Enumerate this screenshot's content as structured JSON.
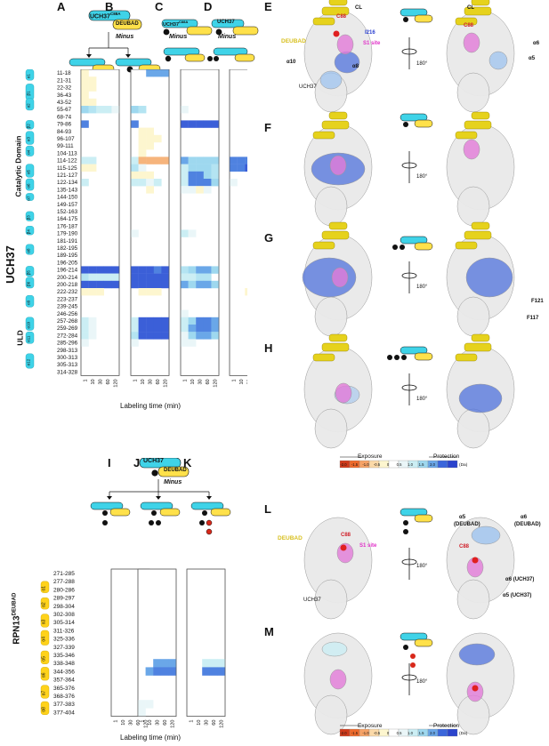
{
  "panel_letters": [
    "A",
    "B",
    "C",
    "D",
    "E",
    "F",
    "G",
    "H",
    "I",
    "J",
    "K",
    "L",
    "M"
  ],
  "top_construct": {
    "ucp": "UCH37",
    "superscript": "C88A",
    "deubad": "DEUBAD",
    "minus": "Minus"
  },
  "col_c_label": {
    "ucp": "UCH37",
    "superscript": "C88A",
    "minus": "Minus"
  },
  "col_d_label": {
    "ucp": "UCH37",
    "minus": "Minus"
  },
  "protein_label": "UCH37",
  "domain_labels": {
    "catalytic": "Catalytic Domain",
    "uld": "ULD"
  },
  "ss_uch": [
    "α1",
    "β1",
    "α2",
    "β2",
    "α3",
    "α4",
    "α5",
    "α6",
    "α7",
    "β3",
    "β4",
    "α8",
    "β5",
    "β6",
    "α9",
    "α10",
    "α11",
    "α12"
  ],
  "uch_peptides": [
    "11-18",
    "21-31",
    "22-32",
    "36-43",
    "43-52",
    "55-67",
    "68-74",
    "79-86",
    "84-93",
    "96-107",
    "99-111",
    "104-113",
    "114-122",
    "115-125",
    "121-127",
    "122-134",
    "135-143",
    "144-150",
    "149-157",
    "152-163",
    "164-175",
    "176-187",
    "179-190",
    "181-191",
    "182-195",
    "189-195",
    "196-205",
    "196-214",
    "200-214",
    "200-218",
    "222-232",
    "223-237",
    "239-245",
    "246-256",
    "257-268",
    "259-269",
    "272-284",
    "285-296",
    "298-313",
    "300-313",
    "305-313",
    "314-328"
  ],
  "time_points": [
    "1",
    "10",
    "30",
    "60",
    "120"
  ],
  "xaxis_label": "Labeling time (min)",
  "rpn_label": "RPN13",
  "rpn_superscript": "DEUBAD",
  "ss_rpn": [
    "α1",
    "α2",
    "α3",
    "α4",
    "α5",
    "α6",
    "α7",
    "α8"
  ],
  "rpn_peptides": [
    "271-285",
    "277-288",
    "280-286",
    "289-297",
    "298-304",
    "302-308",
    "305-314",
    "311-326",
    "325-336",
    "327-339",
    "335-346",
    "338-348",
    "344-356",
    "357-364",
    "365-376",
    "368-376",
    "377-383",
    "377-404"
  ],
  "bottom_construct": {
    "ucp": "UCH37",
    "deubad": "DEUBAD",
    "minus": "Minus"
  },
  "structure_labels": {
    "E_left": [
      "CL",
      "C88",
      "I216",
      "S1 site",
      "DEUBAD",
      "α10",
      "α8",
      "UCH37"
    ],
    "E_right": [
      "CL",
      "C88",
      "α6",
      "α5"
    ],
    "G_right": [
      "F121",
      "F117"
    ],
    "L_left": [
      "DEUBAD",
      "C88",
      "S1 site",
      "UCH37"
    ],
    "L_right": [
      "α5",
      "(DEUBAD)",
      "α6",
      "(DEUBAD)",
      "C88",
      "α6 (UCH37)",
      "α5 (UCH37)"
    ]
  },
  "rotation": "180°",
  "scale_bar": {
    "exposure": "Exposure",
    "protection": "Protection",
    "ticks": [
      "-2.0",
      "-1.5",
      "-1.0",
      "-0.5",
      "0",
      "0.5",
      "1.0",
      "1.5",
      "2.0"
    ],
    "unit": "(Da)",
    "colors": [
      "#d03a1a",
      "#ee6a2c",
      "#f6a266",
      "#fbd9a8",
      "#fdf6cf",
      "#ffffff",
      "#eaf6f8",
      "#cbeef4",
      "#9ed8ef",
      "#6aa7e8",
      "#3b66db",
      "#2b44cc"
    ]
  },
  "heatmaps": {
    "A": [
      [
        -0.2,
        0,
        0,
        0,
        0
      ],
      [
        -0.3,
        -0.2,
        0,
        0,
        0
      ],
      [
        -0.2,
        -0.4,
        0,
        0,
        0
      ],
      [
        -0.2,
        0,
        0,
        0,
        0
      ],
      [
        -0.4,
        -0.3,
        0,
        0,
        0
      ],
      [
        0.9,
        0.6,
        0.4,
        0.4,
        0.2
      ],
      [
        0,
        0,
        0,
        0,
        0
      ],
      [
        1.5,
        0,
        0,
        0,
        0
      ],
      [
        0,
        0,
        0,
        0,
        0
      ],
      [
        0,
        0,
        0,
        0,
        0
      ],
      [
        0,
        0,
        0,
        0,
        0
      ],
      [
        0,
        0,
        0,
        0,
        0
      ],
      [
        0.4,
        0.4,
        0,
        0,
        0
      ],
      [
        -0.3,
        -0.3,
        0,
        0,
        0
      ],
      [
        0,
        0,
        0,
        0,
        0
      ],
      [
        0.4,
        0,
        0,
        0,
        0
      ],
      [
        0,
        0,
        0,
        0,
        0
      ],
      [
        0,
        0,
        0,
        0,
        0
      ],
      [
        0,
        0,
        0,
        0,
        0
      ],
      [
        0,
        0,
        0,
        0,
        0
      ],
      [
        0,
        0,
        0,
        0,
        0
      ],
      [
        0,
        0,
        0,
        0,
        0
      ],
      [
        0,
        0,
        0,
        0,
        0
      ],
      [
        0,
        0,
        0,
        0,
        0
      ],
      [
        0,
        0,
        0,
        0,
        0
      ],
      [
        0,
        0,
        0,
        0,
        0
      ],
      [
        0,
        0,
        0,
        0,
        0
      ],
      [
        1.9,
        1.9,
        1.9,
        1.9,
        1.9
      ],
      [
        0.6,
        0.4,
        0.4,
        0.4,
        0.4
      ],
      [
        1.9,
        1.9,
        1.9,
        1.9,
        1.9
      ],
      [
        -0.3,
        -0.3,
        -0.3,
        0,
        0
      ],
      [
        0,
        0,
        0,
        0,
        0
      ],
      [
        0,
        0,
        0,
        0,
        0
      ],
      [
        0,
        0,
        0,
        0,
        0
      ],
      [
        0.4,
        0.2,
        0,
        0,
        0
      ],
      [
        0.4,
        0.3,
        0,
        0,
        0
      ],
      [
        0.4,
        0.2,
        0,
        0,
        0
      ],
      [
        0.3,
        0,
        0,
        0,
        0
      ],
      [
        0,
        0,
        0,
        0,
        0
      ],
      [
        0,
        0,
        0,
        0,
        0
      ],
      [
        0,
        0,
        0,
        0,
        0
      ],
      [
        0,
        0,
        0,
        0,
        0
      ]
    ],
    "B": [
      [
        0,
        0,
        1.2,
        1.2,
        1.2
      ],
      [
        0,
        0,
        0,
        0,
        0
      ],
      [
        0,
        0,
        0,
        0,
        0
      ],
      [
        0,
        0,
        0,
        0,
        0
      ],
      [
        0,
        0,
        0,
        0,
        0
      ],
      [
        1.0,
        0.6,
        0,
        0,
        0
      ],
      [
        0,
        0,
        0,
        0,
        0
      ],
      [
        1.5,
        0,
        0,
        0,
        0
      ],
      [
        0,
        -0.3,
        -0.3,
        0,
        0
      ],
      [
        0,
        -0.3,
        -0.4,
        -0.3,
        0
      ],
      [
        0,
        -0.3,
        -0.3,
        0,
        0
      ],
      [
        0,
        -0.2,
        0,
        0,
        0
      ],
      [
        0.5,
        -1.2,
        -1.2,
        -1.2,
        -1.0
      ],
      [
        0.7,
        0.3,
        0,
        0,
        0
      ],
      [
        -0.3,
        -0.3,
        -0.3,
        0,
        0
      ],
      [
        0.4,
        0.4,
        0.3,
        0.4,
        0
      ],
      [
        0,
        0,
        -0.2,
        0,
        0
      ],
      [
        0,
        0,
        0,
        0,
        0
      ],
      [
        0,
        0,
        0,
        0,
        0
      ],
      [
        0,
        0,
        0,
        0,
        0
      ],
      [
        0,
        0,
        0,
        0,
        0
      ],
      [
        0,
        0,
        0,
        0,
        0
      ],
      [
        0.3,
        0,
        0,
        0,
        0
      ],
      [
        0,
        0,
        0,
        0,
        0
      ],
      [
        0,
        0,
        0,
        0,
        0
      ],
      [
        0,
        0,
        0,
        0,
        0
      ],
      [
        0,
        0,
        0,
        0,
        0
      ],
      [
        1.8,
        1.8,
        1.7,
        1.5,
        1.8
      ],
      [
        1.9,
        1.9,
        1.9,
        1.9,
        1.9
      ],
      [
        1.9,
        1.9,
        1.9,
        1.9,
        1.9
      ],
      [
        0,
        -0.3,
        -0.3,
        -0.3,
        0
      ],
      [
        0,
        0,
        0,
        0,
        0
      ],
      [
        0,
        0,
        0,
        0,
        0
      ],
      [
        0,
        0,
        0,
        0,
        0
      ],
      [
        0.5,
        1.8,
        1.8,
        1.8,
        1.8
      ],
      [
        0.5,
        1.8,
        1.8,
        1.8,
        1.8
      ],
      [
        0.6,
        1.9,
        1.9,
        1.9,
        1.9
      ],
      [
        0.3,
        0,
        0,
        0,
        0
      ],
      [
        0,
        0,
        0,
        0,
        0
      ],
      [
        0,
        0,
        0,
        0,
        0
      ],
      [
        0,
        0,
        0,
        0,
        0
      ],
      [
        0,
        0,
        0,
        0,
        0
      ]
    ],
    "C": [
      [
        0,
        0,
        0,
        0,
        0
      ],
      [
        0,
        0,
        0,
        0,
        0
      ],
      [
        0,
        0,
        0,
        0,
        0
      ],
      [
        0,
        0,
        0,
        0,
        0
      ],
      [
        0,
        0,
        0,
        0,
        0
      ],
      [
        0.2,
        0,
        0,
        0,
        0
      ],
      [
        0,
        0,
        0,
        0,
        0
      ],
      [
        1.9,
        1.9,
        1.9,
        1.9,
        1.9
      ],
      [
        0,
        0,
        0,
        0,
        0
      ],
      [
        0,
        0,
        0,
        0,
        0
      ],
      [
        0,
        0,
        0,
        0,
        0
      ],
      [
        0,
        0,
        0,
        0,
        0
      ],
      [
        1.2,
        1.0,
        1.0,
        1.0,
        1.0
      ],
      [
        0.4,
        0.9,
        0.9,
        0.9,
        0.6
      ],
      [
        0.4,
        1.6,
        1.6,
        0.9,
        0.6
      ],
      [
        0.4,
        1.4,
        1.6,
        1.6,
        1.0
      ],
      [
        0.3,
        0.3,
        -0.2,
        0.3,
        0
      ],
      [
        0,
        0,
        0,
        0,
        0
      ],
      [
        0,
        0,
        0,
        0,
        0
      ],
      [
        0,
        0,
        0,
        0,
        0
      ],
      [
        0,
        0,
        0,
        0,
        0
      ],
      [
        0,
        0,
        0,
        0,
        0
      ],
      [
        0.4,
        0.3,
        0,
        0,
        0
      ],
      [
        0,
        0,
        0,
        0,
        0
      ],
      [
        0,
        0,
        0,
        0,
        0
      ],
      [
        0,
        0,
        0,
        0,
        0
      ],
      [
        0,
        0,
        0,
        0,
        0
      ],
      [
        0.6,
        0.9,
        1.2,
        1.2,
        0.9
      ],
      [
        0.4,
        0.4,
        0.6,
        0.6,
        0
      ],
      [
        1.2,
        1.0,
        1.2,
        1.2,
        1.0
      ],
      [
        0,
        0,
        0,
        0,
        0
      ],
      [
        0,
        0,
        0,
        0,
        0
      ],
      [
        0,
        0,
        0,
        0,
        0
      ],
      [
        0.3,
        0,
        0,
        0,
        0
      ],
      [
        0.4,
        0.9,
        1.6,
        1.6,
        1.2
      ],
      [
        0.4,
        1.2,
        1.6,
        1.6,
        1.2
      ],
      [
        0.3,
        0.9,
        1.2,
        1.2,
        0.9
      ],
      [
        0.3,
        0.3,
        0,
        0,
        0
      ],
      [
        0,
        0,
        0,
        0,
        0
      ],
      [
        0,
        0,
        0,
        0,
        0
      ],
      [
        0,
        0,
        0,
        0,
        0
      ],
      [
        0,
        0,
        0,
        0,
        0
      ]
    ],
    "D": [
      [
        0,
        0,
        0,
        0,
        0
      ],
      [
        0,
        0,
        0,
        0,
        0
      ],
      [
        0,
        0,
        0,
        0,
        0
      ],
      [
        0,
        0,
        0,
        0,
        0
      ],
      [
        0,
        0,
        0,
        0,
        0
      ],
      [
        0,
        0,
        0,
        0,
        0
      ],
      [
        0,
        0,
        0,
        0,
        0
      ],
      [
        0,
        0,
        0,
        0,
        0
      ],
      [
        0,
        0,
        0,
        0,
        0
      ],
      [
        0,
        0,
        0,
        0,
        0
      ],
      [
        0,
        0,
        0,
        0,
        0
      ],
      [
        0,
        0,
        0,
        0,
        0
      ],
      [
        1.6,
        1.6,
        1.6,
        1.6,
        1.6
      ],
      [
        1.6,
        1.6,
        1.9,
        1.9,
        1.9
      ],
      [
        0,
        0,
        0,
        0,
        0
      ],
      [
        0.3,
        0,
        0,
        0,
        0
      ],
      [
        0,
        0,
        0,
        0,
        0
      ],
      [
        0,
        0,
        0,
        0,
        0
      ],
      [
        0,
        0,
        0,
        0,
        0
      ],
      [
        0,
        0,
        0,
        0,
        0
      ],
      [
        0,
        0,
        0,
        0,
        0
      ],
      [
        0,
        0,
        0,
        0,
        0
      ],
      [
        0,
        0,
        0,
        0,
        0
      ],
      [
        0,
        0,
        0,
        0,
        0
      ],
      [
        0,
        0,
        0,
        0,
        0
      ],
      [
        0,
        0,
        0,
        0,
        0
      ],
      [
        0,
        0,
        0,
        0,
        0
      ],
      [
        0,
        0,
        0,
        0,
        0
      ],
      [
        0,
        0,
        0,
        0,
        0
      ],
      [
        0,
        0,
        0,
        0,
        0
      ],
      [
        0,
        0,
        -0.3,
        -0.3,
        0
      ],
      [
        0,
        0,
        0,
        0,
        0
      ],
      [
        0,
        0,
        0,
        0,
        0
      ],
      [
        0,
        0,
        0,
        0,
        0
      ],
      [
        0,
        0,
        0,
        0,
        0
      ],
      [
        0,
        0,
        0,
        0,
        0
      ],
      [
        0,
        0,
        0,
        0,
        0
      ],
      [
        0,
        0,
        0,
        0,
        0
      ],
      [
        0,
        0,
        0,
        0,
        0
      ],
      [
        0,
        0,
        0,
        0,
        0
      ],
      [
        0,
        0,
        0,
        0,
        0
      ],
      [
        0,
        0,
        0,
        0,
        0
      ]
    ],
    "I": [
      [
        0,
        0,
        0,
        0,
        0
      ],
      [
        0,
        0,
        0,
        0,
        0
      ],
      [
        0,
        0,
        0,
        0,
        0
      ],
      [
        0,
        0,
        0,
        0,
        0
      ],
      [
        0,
        0,
        0,
        0,
        0
      ],
      [
        0,
        0,
        0,
        0,
        0
      ],
      [
        0,
        0,
        0,
        0,
        0
      ],
      [
        0,
        0,
        0,
        0,
        0
      ],
      [
        0,
        0,
        0,
        0,
        0
      ],
      [
        0,
        0,
        0,
        0,
        0
      ],
      [
        0,
        0,
        0,
        0,
        0
      ],
      [
        0,
        0,
        0,
        0,
        0
      ],
      [
        0,
        0,
        0,
        0,
        0
      ],
      [
        0,
        0,
        0,
        0,
        0
      ],
      [
        0,
        0,
        0,
        0,
        0
      ],
      [
        0,
        0,
        0,
        0,
        0
      ],
      [
        0,
        0,
        0,
        0,
        0
      ],
      [
        0,
        0,
        0,
        0,
        0
      ]
    ],
    "J": [
      [
        0,
        0,
        0,
        0,
        0
      ],
      [
        0,
        0,
        0,
        0,
        0
      ],
      [
        0,
        0,
        0,
        0,
        0
      ],
      [
        0,
        0,
        0,
        0,
        0
      ],
      [
        0,
        0,
        0,
        0,
        0
      ],
      [
        0,
        0,
        0,
        0,
        0
      ],
      [
        0,
        0,
        0,
        0,
        0
      ],
      [
        0,
        0,
        0,
        0,
        0
      ],
      [
        0,
        0,
        0,
        0,
        0
      ],
      [
        0,
        0,
        0,
        0,
        0
      ],
      [
        0,
        0,
        0,
        0,
        0
      ],
      [
        0,
        0,
        1.2,
        1.2,
        1.2
      ],
      [
        0,
        1.2,
        1.6,
        1.6,
        1.6
      ],
      [
        0,
        0,
        0,
        0,
        0
      ],
      [
        0,
        0,
        0,
        0,
        0
      ],
      [
        0,
        0,
        0,
        0,
        0
      ],
      [
        0.3,
        0.3,
        0,
        0,
        0
      ],
      [
        0.3,
        0,
        0,
        0,
        0
      ]
    ],
    "K": [
      [
        0,
        0,
        0,
        0,
        0
      ],
      [
        0,
        0,
        0,
        0,
        0
      ],
      [
        0,
        0,
        0,
        0,
        0
      ],
      [
        0,
        0,
        0,
        0,
        0
      ],
      [
        0,
        0,
        0,
        0,
        0
      ],
      [
        0,
        0,
        0,
        0,
        0
      ],
      [
        0,
        0,
        0,
        0,
        0
      ],
      [
        0,
        0,
        0,
        0,
        0
      ],
      [
        0,
        0,
        0,
        0,
        0
      ],
      [
        0,
        0,
        0,
        0,
        0
      ],
      [
        0,
        0,
        0,
        0,
        0
      ],
      [
        0,
        0,
        0.4,
        0.4,
        0.4
      ],
      [
        0,
        0,
        1.4,
        1.4,
        1.4
      ],
      [
        0,
        0,
        0,
        0,
        0
      ],
      [
        0,
        0,
        0,
        0,
        0
      ],
      [
        0,
        0,
        0,
        0,
        0
      ],
      [
        0,
        0,
        0,
        0,
        0
      ],
      [
        0,
        0,
        0,
        0,
        0
      ]
    ]
  }
}
